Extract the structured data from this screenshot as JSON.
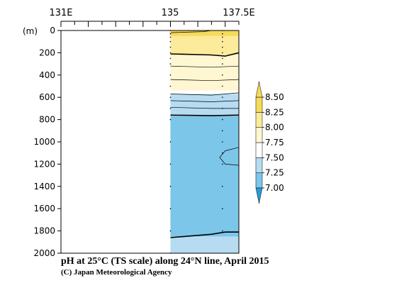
{
  "chart_data": {
    "type": "heatmap",
    "title": "pH at 25°C (TS scale) along 24°N line, April 2015",
    "credit": "(C) Japan Meteorological Agency",
    "ylabel_unit": "(m)",
    "xlim": [
      131,
      137.5
    ],
    "ylim": [
      2000,
      0
    ],
    "x_ticks": [
      {
        "value": 131,
        "label": "131E"
      },
      {
        "value": 135,
        "label": "135"
      },
      {
        "value": 137.5,
        "label": "137.5E"
      }
    ],
    "y_ticks": [
      0,
      200,
      400,
      600,
      800,
      1000,
      1200,
      1400,
      1600,
      1800,
      2000
    ],
    "data_x_range": [
      135,
      137.5
    ],
    "colorbar": {
      "levels": [
        7.0,
        7.25,
        7.5,
        7.75,
        8.0,
        8.25,
        8.5
      ],
      "tick_labels": [
        "7.00",
        "7.25",
        "7.50",
        "7.75",
        "8.00",
        "8.25",
        "8.50"
      ],
      "colors": [
        "#2c9ad6",
        "#7cc6ea",
        "#b7dcf2",
        "#ffffff",
        "#fff7d2",
        "#fbeb9b",
        "#f6da5a"
      ]
    },
    "bands": [
      {
        "color": "#f6da5a",
        "top": 0,
        "bottom": 50
      },
      {
        "color": "#fbeb9b",
        "top": 50,
        "bottom": 220
      },
      {
        "color": "#fff7d2",
        "top": 220,
        "bottom": 540
      },
      {
        "color": "#ffffff",
        "top": 540,
        "bottom": 570
      },
      {
        "color": "#b7dcf2",
        "top": 570,
        "bottom": 770
      },
      {
        "color": "#7cc6ea",
        "top": 770,
        "bottom": 1850
      },
      {
        "color": "#b7dcf2",
        "top": 1850,
        "bottom": 2000
      }
    ],
    "contours": [
      {
        "level": 8.25,
        "bold": false,
        "points": [
          [
            135,
            20
          ],
          [
            136.2,
            10
          ],
          [
            136.5,
            0
          ]
        ]
      },
      {
        "level": 8.0,
        "bold": true,
        "points": [
          [
            135,
            210
          ],
          [
            136.5,
            220
          ],
          [
            137,
            230
          ],
          [
            137.5,
            200
          ]
        ]
      },
      {
        "level": 7.75,
        "bold": false,
        "points": [
          [
            135,
            320
          ],
          [
            136.5,
            330
          ],
          [
            137.5,
            320
          ]
        ]
      },
      {
        "level": 7.75,
        "bold": false,
        "points": [
          [
            135,
            440
          ],
          [
            136.5,
            450
          ],
          [
            137.5,
            440
          ]
        ]
      },
      {
        "level": 7.5,
        "bold": false,
        "points": [
          [
            135,
            570
          ],
          [
            136.5,
            580
          ],
          [
            137.5,
            560
          ]
        ]
      },
      {
        "level": 7.5,
        "bold": false,
        "points": [
          [
            135,
            630
          ],
          [
            136.5,
            640
          ],
          [
            137.5,
            630
          ]
        ]
      },
      {
        "level": 7.5,
        "bold": false,
        "points": [
          [
            135,
            690
          ],
          [
            136.5,
            700
          ],
          [
            137.5,
            700
          ]
        ]
      },
      {
        "level": 7.5,
        "bold": true,
        "points": [
          [
            135,
            760
          ],
          [
            136.5,
            765
          ],
          [
            137.5,
            760
          ]
        ]
      },
      {
        "level": 7.25,
        "bold": false,
        "points": [
          [
            137.5,
            1050
          ],
          [
            137,
            1080
          ],
          [
            136.8,
            1140
          ],
          [
            137,
            1200
          ],
          [
            137.5,
            1210
          ]
        ]
      },
      {
        "level": 7.5,
        "bold": true,
        "points": [
          [
            135,
            1860
          ],
          [
            136.5,
            1830
          ],
          [
            137,
            1810
          ],
          [
            137.5,
            1810
          ]
        ]
      }
    ],
    "stations": [
      {
        "lon": 135,
        "depths": [
          0,
          30,
          60,
          100,
          150,
          200,
          250,
          300,
          400,
          500,
          600,
          700,
          800,
          1000,
          1200,
          1400,
          1600,
          1800,
          2000
        ]
      },
      {
        "lon": 136.9,
        "depths": [
          0,
          30,
          60,
          100,
          150,
          200,
          250,
          300,
          400,
          500,
          600,
          700,
          800,
          900,
          1000,
          1100,
          1200,
          1400,
          1600,
          1800
        ]
      }
    ]
  }
}
